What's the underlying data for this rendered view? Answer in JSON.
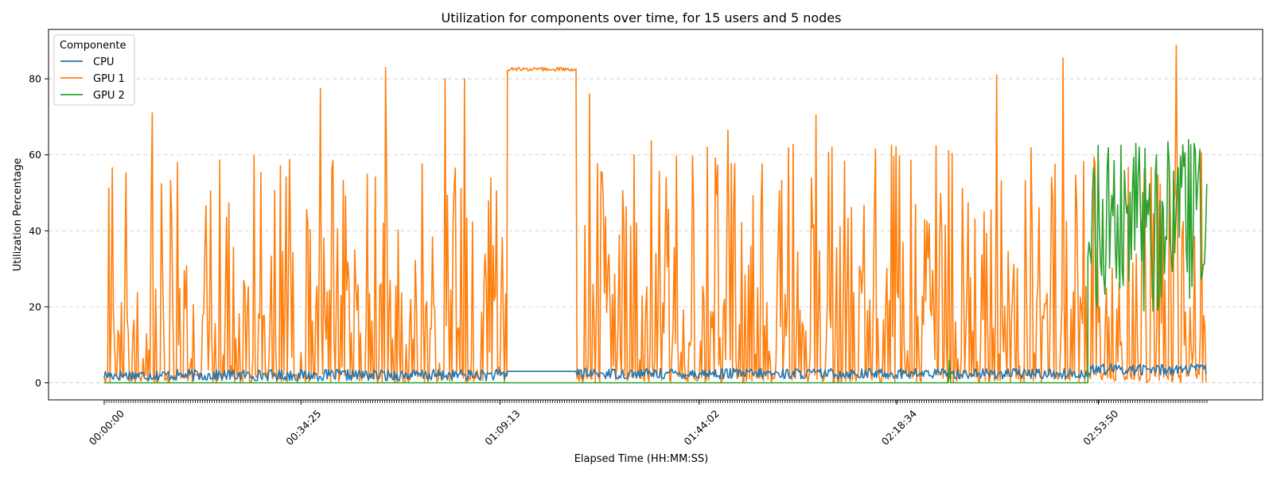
{
  "chart_data": {
    "type": "line",
    "title": "Utilization for components over time, for 15 users and 5 nodes",
    "xlabel": "Elapsed Time (HH:MM:SS)",
    "ylabel": "Utilization Percentage",
    "x_ticks": [
      "00:00:00",
      "00:34:25",
      "01:09:13",
      "01:44:02",
      "02:18:34",
      "02:53:50"
    ],
    "x_tick_seconds": [
      0,
      2065,
      4153,
      6242,
      8314,
      10430
    ],
    "x_range_seconds": [
      0,
      11570
    ],
    "ylim": [
      -4.5,
      93
    ],
    "y_ticks": [
      0,
      20,
      40,
      60,
      80
    ],
    "grid": "horizontal dashed",
    "legend": {
      "title": "Componente",
      "placement": "top-left",
      "entries": [
        "CPU",
        "GPU 1",
        "GPU 2"
      ]
    },
    "series": [
      {
        "name": "CPU",
        "color": "#1f77b4",
        "regions": [
          {
            "x_start": 0,
            "x_end": 4230,
            "kind": "noisy",
            "min": 0.5,
            "max": 3.5
          },
          {
            "x_start": 4230,
            "x_end": 4960,
            "kind": "plateau",
            "value": 3.0
          },
          {
            "x_start": 4960,
            "x_end": 10350,
            "kind": "noisy",
            "min": 1.0,
            "max": 3.8
          },
          {
            "x_start": 10350,
            "x_end": 11570,
            "kind": "noisy",
            "min": 2.0,
            "max": 5.0
          }
        ]
      },
      {
        "name": "GPU 1",
        "color": "#ff7f0e",
        "regions": [
          {
            "x_start": 0,
            "x_end": 4230,
            "kind": "spiky",
            "min": 0,
            "max": 83
          },
          {
            "x_start": 4230,
            "x_end": 4960,
            "kind": "plateau",
            "value": 82.5
          },
          {
            "x_start": 4960,
            "x_end": 11570,
            "kind": "spiky",
            "min": 0,
            "max": 89
          }
        ],
        "peaks": [
          {
            "x": 510,
            "y": 71
          },
          {
            "x": 2265,
            "y": 77.5
          },
          {
            "x": 2955,
            "y": 83
          },
          {
            "x": 3575,
            "y": 80
          },
          {
            "x": 3775,
            "y": 80
          },
          {
            "x": 5090,
            "y": 76
          },
          {
            "x": 6545,
            "y": 66.5
          },
          {
            "x": 7465,
            "y": 70.5
          },
          {
            "x": 9370,
            "y": 81
          },
          {
            "x": 10060,
            "y": 85.5
          },
          {
            "x": 11250,
            "y": 88.8
          }
        ]
      },
      {
        "name": "GPU 2",
        "color": "#2ca02c",
        "regions": [
          {
            "x_start": 0,
            "x_end": 10320,
            "kind": "flat",
            "value": 0
          },
          {
            "x_start": 10320,
            "x_end": 11570,
            "kind": "noisy",
            "min": 18,
            "max": 64
          }
        ],
        "peaks": [
          {
            "x": 8865,
            "y": 6
          },
          {
            "x": 10595,
            "y": 58.5
          },
          {
            "x": 11380,
            "y": 64
          }
        ]
      }
    ]
  }
}
